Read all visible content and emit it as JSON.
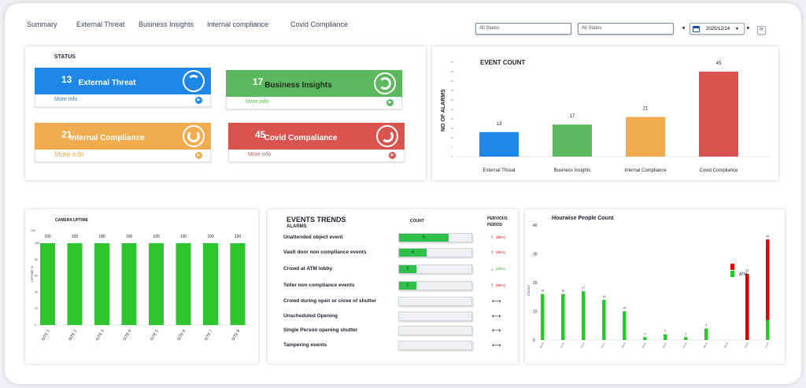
{
  "nav": [
    "Summary",
    "External Threat",
    "Business Insights",
    "Internal compliance",
    "Covid Compliance"
  ],
  "filters": {
    "state1": "All States",
    "state2": "All States",
    "date": "2020/12/14",
    "prev": "◄",
    "next": "►",
    "refresh": "⟳"
  },
  "status": {
    "title": "STATUS",
    "more": "More info",
    "tiles": [
      {
        "count": "13",
        "label": "External Threat",
        "color": "#1e88e8"
      },
      {
        "count": "17",
        "label": "Business Insights",
        "color": "#5cb85c"
      },
      {
        "count": "21",
        "label": "Internal Compliance",
        "color": "#f0ac4e"
      },
      {
        "count": "45",
        "label": "Covid Compaliance",
        "color": "#d9534f"
      }
    ]
  },
  "event_count": {
    "title": "EVENT COUNT",
    "ylabel": "NO OF ALARMS",
    "chart_data": {
      "type": "bar",
      "categories": [
        "External Threat",
        "Business Insights",
        "Internal Compliance",
        "Covid Compliance"
      ],
      "values": [
        13,
        17,
        21,
        45
      ],
      "colors": [
        "#1e88e8",
        "#5cb85c",
        "#f0ac4e",
        "#d9534f"
      ],
      "ylim": [
        0,
        50
      ]
    }
  },
  "camera_uptime": {
    "title": "CAMERA UPTIME",
    "ylabel": "UPTIME %",
    "chart_data": {
      "type": "bar",
      "categories": [
        "SITE 1",
        "SITE 2",
        "SITE 3",
        "SITE 4",
        "SITE 5",
        "SITE 6",
        "SITE 7",
        "SITE 8"
      ],
      "values": [
        100,
        100,
        100,
        100,
        100,
        100,
        100,
        100
      ],
      "yticks": [
        0,
        20,
        40,
        60,
        80,
        100
      ],
      "ylim": [
        0,
        100
      ],
      "color": "#2ec42e"
    }
  },
  "events_trends": {
    "title": "EVENTS TRENDS",
    "subtitle": "ALARMS",
    "count_header": "COUNT",
    "period_header": "PERVIOUS PERIOD",
    "rows": [
      {
        "label": "Unattended object event",
        "count": "5",
        "fill": 0.68,
        "dir": "up",
        "pct": "(66%)"
      },
      {
        "label": "Vault door non compliance events",
        "count": "4",
        "fill": 0.38,
        "dir": "up",
        "pct": "(66%)"
      },
      {
        "label": "Crowd at ATM lobby",
        "count": "2",
        "fill": 0.24,
        "dir": "down",
        "pct": "(25%)"
      },
      {
        "label": "Teller non compliance events",
        "count": "2",
        "fill": 0.24,
        "dir": "up",
        "pct": "(66%)"
      },
      {
        "label": "Crowd during open or close of shutter",
        "count": "",
        "fill": 0,
        "dir": "flat",
        "pct": ""
      },
      {
        "label": "Unscheduled Opening",
        "count": "",
        "fill": 0,
        "dir": "flat",
        "pct": ""
      },
      {
        "label": "Single Person opening shutter",
        "count": "",
        "fill": 0,
        "dir": "flat",
        "pct": ""
      },
      {
        "label": "Tampering events",
        "count": "",
        "fill": 0,
        "dir": "flat",
        "pct": ""
      }
    ]
  },
  "hourwise": {
    "title": "Hourwise People Count",
    "ylabel": "COUNT",
    "chart_data": {
      "type": "bar",
      "ylim": [
        0,
        40
      ],
      "yticks": [
        0,
        10,
        20,
        30,
        40
      ],
      "x": [
        "00:00",
        "01:00",
        "02:00",
        "03:00",
        "04:00",
        "05:00",
        "06:00",
        "07:00",
        "08:00",
        "09:00",
        "10:00",
        "11:00",
        "12:00",
        "13:00",
        "14:00",
        "15:00",
        "16:00",
        "17:00",
        "18:00",
        "19:00",
        "20:00",
        "21:00",
        "22:00",
        "23:00"
      ],
      "series": [
        {
          "name": "",
          "color": "#e00000",
          "values": [
            null,
            null,
            null,
            null,
            null,
            null,
            null,
            null,
            null,
            null,
            null,
            null,
            null,
            null,
            null,
            null,
            null,
            null,
            null,
            null,
            null,
            null,
            null,
            null
          ]
        },
        {
          "name": "ATM",
          "color": "#22cc22",
          "values": [
            null,
            null,
            null,
            null,
            null,
            null,
            null,
            null,
            null,
            null,
            null,
            null,
            null,
            null,
            null,
            null,
            null,
            null,
            null,
            null,
            null,
            null,
            null,
            null
          ]
        }
      ],
      "red_points": [
        [
          5.0,
          23
        ],
        [
          5.5,
          35
        ]
      ],
      "green_points": [
        [
          0,
          16
        ],
        [
          0.5,
          16
        ],
        [
          1.0,
          17
        ],
        [
          1.5,
          14
        ],
        [
          2.0,
          10
        ],
        [
          2.5,
          1
        ],
        [
          3.0,
          2
        ],
        [
          3.5,
          1
        ],
        [
          4.0,
          4
        ],
        [
          5.5,
          7
        ]
      ],
      "legend_items": [
        "",
        "ATM"
      ]
    }
  }
}
